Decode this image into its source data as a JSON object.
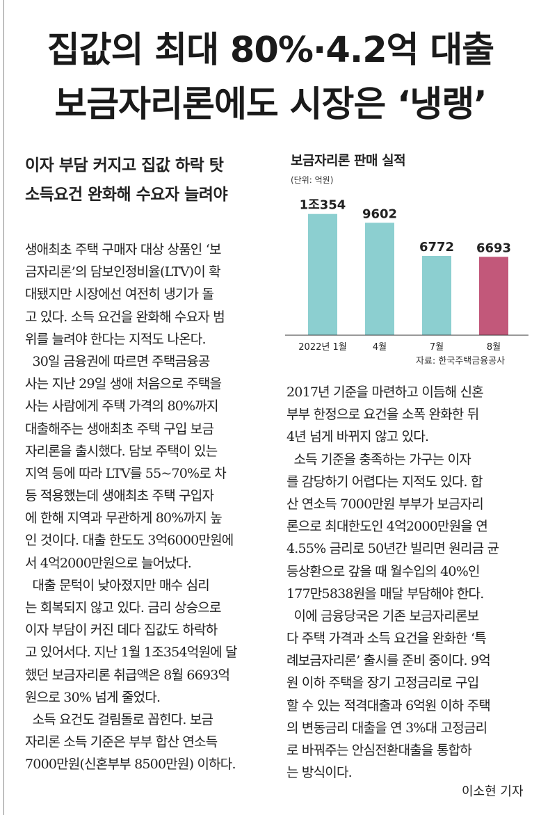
{
  "headline": {
    "line1": "집값의 최대 80%·4.2억 대출",
    "line2": "보금자리론에도 시장은 ‘냉랭’"
  },
  "subheadline": {
    "line1": "이자 부담 커지고 집값 하락 탓",
    "line2": "소득요건 완화해 수요자 늘려야"
  },
  "article": {
    "left_lines": [
      "생애최초 주택 구매자 대상 상품인 ‘보",
      "금자리론’의 담보인정비율(LTV)이 확",
      "대됐지만 시장에선 여전히 냉기가 돌",
      "고 있다. 소득 요건을 완화해 수요자 범",
      "위를 늘려야 한다는 지적도 나온다.",
      "  30일 금융권에 따르면 주택금융공",
      "사는 지난 29일 생애 처음으로 주택을",
      "사는 사람에게 주택 가격의 80%까지",
      "대출해주는 생애최초 주택 구입 보금",
      "자리론을 출시했다. 담보 주택이 있는",
      "지역 등에 따라 LTV를 55~70%로 차",
      "등 적용했는데 생애최초 주택 구입자",
      "에 한해 지역과 무관하게 80%까지 높",
      "인 것이다. 대출 한도도 3억6000만원에",
      "서 4억2000만원으로 늘어났다.",
      "  대출 문턱이 낮아졌지만 매수 심리",
      "는 회복되지 않고 있다. 금리 상승으로",
      "이자 부담이 커진 데다 집값도 하락하",
      "고 있어서다. 지난 1월 1조354억원에 달",
      "했던 보금자리론 취급액은 8월 6693억",
      "원으로 30% 넘게 줄었다.",
      "  소득 요건도 걸림돌로 꼽힌다. 보금",
      "자리론 소득 기준은 부부 합산 연소득",
      "7000만원(신혼부부 8500만원) 이하다."
    ],
    "right_lines": [
      "2017년 기준을 마련하고 이듬해 신혼",
      "부부 한정으로 요건을 소폭 완화한 뒤",
      "4년 넘게 바뀌지 않고 있다.",
      "  소득 기준을 충족하는 가구는 이자",
      "를 감당하기 어렵다는 지적도 있다. 합",
      "산 연소득 7000만원 부부가 보금자리",
      "론으로 최대한도인 4억2000만원을 연",
      "4.55% 금리로 50년간 빌리면 원리금 균",
      "등상환으로 갚을 때 월수입의 40%인",
      "177만5838원을 매달 부담해야 한다.",
      "  이에 금융당국은 기존 보금자리론보",
      "다 주택 가격과 소득 요건을 완화한 ‘특",
      "례보금자리론’ 출시를 준비 중이다. 9억",
      "원 이하 주택을 장기 고정금리로 구입",
      "할 수 있는 적격대출과 6억원 이하 주택",
      "의 변동금리 대출을 연 3%대 고정금리",
      "로 바꿔주는 안심전환대출을 통합하",
      "는 방식이다."
    ],
    "reporter": "이소현 기자"
  },
  "chart_data": {
    "type": "bar",
    "title": "보금자리론 판매 실적",
    "unit": "(단위: 억원)",
    "source": "자료: 한국주택금융공사",
    "categories": [
      "2022년 1월",
      "4월",
      "7월",
      "8월"
    ],
    "values": [
      10354,
      9602,
      6772,
      6693
    ],
    "value_labels": [
      "1조354",
      "9602",
      "6772",
      "6693"
    ],
    "colors": [
      "#8ccfd0",
      "#8ccfd0",
      "#8ccfd0",
      "#c2587a"
    ],
    "ylim": [
      0,
      12000
    ],
    "grid": false,
    "legend": "none"
  }
}
